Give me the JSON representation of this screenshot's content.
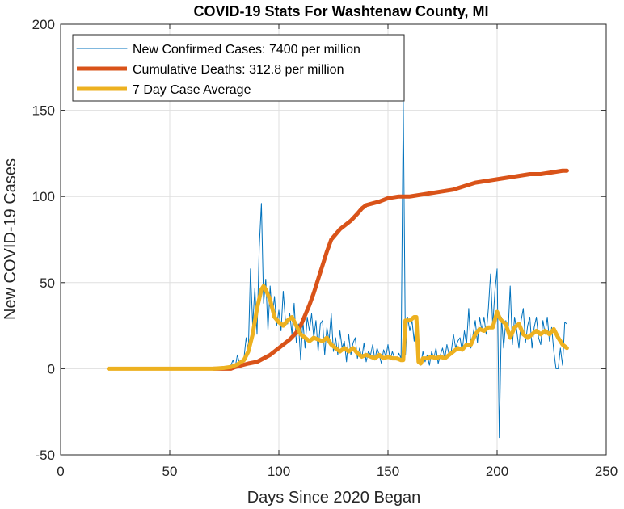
{
  "chart_data": {
    "type": "line",
    "title": "COVID-19 Stats For Washtenaw County, MI",
    "xlabel": "Days Since 2020 Began",
    "ylabel": "New COVID-19 Cases",
    "xlim": [
      0,
      250
    ],
    "ylim": [
      -50,
      200
    ],
    "xticks": [
      0,
      50,
      100,
      150,
      200,
      250
    ],
    "yticks": [
      -50,
      0,
      50,
      100,
      150,
      200
    ],
    "xtick_labels": [
      "0",
      "50",
      "100",
      "150",
      "200",
      "250"
    ],
    "ytick_labels": [
      "-50",
      "0",
      "50",
      "100",
      "150",
      "200"
    ],
    "grid": true,
    "legend_position": "top-left",
    "series": [
      {
        "name": "New Confirmed Cases: 7400 per million",
        "color": "#0072BD",
        "style": "thin",
        "points": [
          [
            22,
            0
          ],
          [
            40,
            0
          ],
          [
            60,
            0
          ],
          [
            70,
            0
          ],
          [
            72,
            0
          ],
          [
            74,
            1
          ],
          [
            76,
            0
          ],
          [
            78,
            2
          ],
          [
            79,
            5
          ],
          [
            80,
            1
          ],
          [
            81,
            8
          ],
          [
            82,
            3
          ],
          [
            83,
            1
          ],
          [
            84,
            6
          ],
          [
            85,
            18
          ],
          [
            86,
            10
          ],
          [
            87,
            58
          ],
          [
            88,
            25
          ],
          [
            89,
            47
          ],
          [
            90,
            20
          ],
          [
            91,
            70
          ],
          [
            92,
            96
          ],
          [
            93,
            38
          ],
          [
            94,
            52
          ],
          [
            95,
            22
          ],
          [
            96,
            48
          ],
          [
            97,
            30
          ],
          [
            98,
            42
          ],
          [
            99,
            25
          ],
          [
            100,
            34
          ],
          [
            101,
            22
          ],
          [
            102,
            45
          ],
          [
            103,
            28
          ],
          [
            104,
            26
          ],
          [
            105,
            32
          ],
          [
            106,
            20
          ],
          [
            107,
            38
          ],
          [
            108,
            15
          ],
          [
            109,
            26
          ],
          [
            110,
            5
          ],
          [
            111,
            28
          ],
          [
            112,
            12
          ],
          [
            113,
            30
          ],
          [
            114,
            22
          ],
          [
            115,
            32
          ],
          [
            116,
            18
          ],
          [
            117,
            28
          ],
          [
            118,
            10
          ],
          [
            119,
            26
          ],
          [
            120,
            28
          ],
          [
            121,
            8
          ],
          [
            122,
            24
          ],
          [
            123,
            16
          ],
          [
            124,
            32
          ],
          [
            125,
            10
          ],
          [
            126,
            18
          ],
          [
            127,
            8
          ],
          [
            128,
            22
          ],
          [
            129,
            12
          ],
          [
            130,
            16
          ],
          [
            131,
            4
          ],
          [
            132,
            20
          ],
          [
            133,
            8
          ],
          [
            134,
            15
          ],
          [
            135,
            18
          ],
          [
            136,
            6
          ],
          [
            137,
            12
          ],
          [
            138,
            6
          ],
          [
            139,
            15
          ],
          [
            140,
            4
          ],
          [
            141,
            10
          ],
          [
            142,
            8
          ],
          [
            143,
            14
          ],
          [
            144,
            5
          ],
          [
            145,
            12
          ],
          [
            146,
            8
          ],
          [
            147,
            3
          ],
          [
            148,
            11
          ],
          [
            149,
            7
          ],
          [
            150,
            14
          ],
          [
            151,
            5
          ],
          [
            152,
            10
          ],
          [
            153,
            6
          ],
          [
            154,
            5
          ],
          [
            155,
            9
          ],
          [
            156,
            6
          ],
          [
            157,
            155
          ],
          [
            158,
            8
          ],
          [
            159,
            30
          ],
          [
            160,
            22
          ],
          [
            161,
            28
          ],
          [
            162,
            16
          ],
          [
            163,
            30
          ],
          [
            164,
            5
          ],
          [
            165,
            2
          ],
          [
            166,
            10
          ],
          [
            167,
            4
          ],
          [
            168,
            8
          ],
          [
            169,
            2
          ],
          [
            170,
            10
          ],
          [
            171,
            6
          ],
          [
            172,
            12
          ],
          [
            173,
            3
          ],
          [
            174,
            8
          ],
          [
            175,
            12
          ],
          [
            176,
            6
          ],
          [
            177,
            14
          ],
          [
            178,
            8
          ],
          [
            179,
            10
          ],
          [
            180,
            20
          ],
          [
            181,
            12
          ],
          [
            182,
            16
          ],
          [
            183,
            18
          ],
          [
            184,
            10
          ],
          [
            185,
            22
          ],
          [
            186,
            14
          ],
          [
            187,
            35
          ],
          [
            188,
            12
          ],
          [
            189,
            20
          ],
          [
            190,
            28
          ],
          [
            191,
            15
          ],
          [
            192,
            30
          ],
          [
            193,
            22
          ],
          [
            194,
            30
          ],
          [
            195,
            20
          ],
          [
            196,
            35
          ],
          [
            197,
            55
          ],
          [
            198,
            25
          ],
          [
            199,
            45
          ],
          [
            200,
            58
          ],
          [
            201,
            -40
          ],
          [
            202,
            30
          ],
          [
            203,
            12
          ],
          [
            204,
            28
          ],
          [
            205,
            20
          ],
          [
            206,
            48
          ],
          [
            207,
            14
          ],
          [
            208,
            30
          ],
          [
            209,
            22
          ],
          [
            210,
            12
          ],
          [
            211,
            28
          ],
          [
            212,
            35
          ],
          [
            213,
            15
          ],
          [
            214,
            25
          ],
          [
            215,
            30
          ],
          [
            216,
            12
          ],
          [
            217,
            24
          ],
          [
            218,
            30
          ],
          [
            219,
            18
          ],
          [
            220,
            14
          ],
          [
            221,
            28
          ],
          [
            222,
            20
          ],
          [
            223,
            30
          ],
          [
            224,
            16
          ],
          [
            225,
            24
          ],
          [
            226,
            10
          ],
          [
            227,
            0
          ],
          [
            228,
            0
          ],
          [
            229,
            12
          ],
          [
            230,
            2
          ],
          [
            231,
            27
          ],
          [
            232,
            26
          ]
        ]
      },
      {
        "name": "Cumulative Deaths: 312.8 per million",
        "color": "#D95319",
        "style": "thick",
        "points": [
          [
            70,
            0
          ],
          [
            78,
            0
          ],
          [
            80,
            1
          ],
          [
            83,
            2
          ],
          [
            86,
            3
          ],
          [
            90,
            4
          ],
          [
            93,
            6
          ],
          [
            96,
            8
          ],
          [
            99,
            11
          ],
          [
            102,
            14
          ],
          [
            105,
            17
          ],
          [
            108,
            21
          ],
          [
            110,
            25
          ],
          [
            112,
            31
          ],
          [
            114,
            37
          ],
          [
            116,
            44
          ],
          [
            118,
            52
          ],
          [
            120,
            60
          ],
          [
            122,
            68
          ],
          [
            124,
            75
          ],
          [
            126,
            78
          ],
          [
            128,
            81
          ],
          [
            130,
            83
          ],
          [
            133,
            86
          ],
          [
            136,
            90
          ],
          [
            138,
            93
          ],
          [
            140,
            95
          ],
          [
            143,
            96
          ],
          [
            146,
            97
          ],
          [
            148,
            98
          ],
          [
            150,
            99
          ],
          [
            155,
            100
          ],
          [
            160,
            100
          ],
          [
            165,
            101
          ],
          [
            170,
            102
          ],
          [
            175,
            103
          ],
          [
            180,
            104
          ],
          [
            185,
            106
          ],
          [
            190,
            108
          ],
          [
            195,
            109
          ],
          [
            200,
            110
          ],
          [
            205,
            111
          ],
          [
            210,
            112
          ],
          [
            215,
            113
          ],
          [
            220,
            113
          ],
          [
            225,
            114
          ],
          [
            230,
            115
          ],
          [
            232,
            115
          ]
        ]
      },
      {
        "name": "7 Day Case Average",
        "color": "#EDB120",
        "style": "thick",
        "points": [
          [
            22,
            0
          ],
          [
            40,
            0
          ],
          [
            60,
            0
          ],
          [
            70,
            0
          ],
          [
            75,
            0.5
          ],
          [
            78,
            1
          ],
          [
            81,
            2.5
          ],
          [
            84,
            5
          ],
          [
            86,
            10
          ],
          [
            88,
            20
          ],
          [
            90,
            35
          ],
          [
            92,
            46
          ],
          [
            93,
            48
          ],
          [
            94,
            46
          ],
          [
            96,
            40
          ],
          [
            98,
            30
          ],
          [
            100,
            27
          ],
          [
            102,
            25
          ],
          [
            104,
            28
          ],
          [
            106,
            30
          ],
          [
            108,
            25
          ],
          [
            110,
            20
          ],
          [
            112,
            18
          ],
          [
            114,
            16
          ],
          [
            116,
            18
          ],
          [
            118,
            17
          ],
          [
            120,
            16
          ],
          [
            122,
            18
          ],
          [
            124,
            14
          ],
          [
            126,
            12
          ],
          [
            128,
            10
          ],
          [
            130,
            12
          ],
          [
            132,
            10
          ],
          [
            134,
            12
          ],
          [
            136,
            9
          ],
          [
            138,
            7
          ],
          [
            140,
            8
          ],
          [
            142,
            7
          ],
          [
            144,
            6
          ],
          [
            146,
            8
          ],
          [
            148,
            6
          ],
          [
            150,
            7
          ],
          [
            152,
            6
          ],
          [
            154,
            6
          ],
          [
            156,
            5
          ],
          [
            157,
            5
          ],
          [
            158,
            28
          ],
          [
            160,
            28
          ],
          [
            162,
            30
          ],
          [
            163,
            30
          ],
          [
            164,
            4
          ],
          [
            165,
            3
          ],
          [
            166,
            6
          ],
          [
            168,
            6
          ],
          [
            170,
            7
          ],
          [
            172,
            6
          ],
          [
            174,
            7
          ],
          [
            176,
            6
          ],
          [
            178,
            8
          ],
          [
            180,
            10
          ],
          [
            182,
            12
          ],
          [
            184,
            11
          ],
          [
            186,
            14
          ],
          [
            188,
            14
          ],
          [
            190,
            20
          ],
          [
            192,
            23
          ],
          [
            194,
            22
          ],
          [
            196,
            24
          ],
          [
            198,
            24
          ],
          [
            200,
            33
          ],
          [
            201,
            30
          ],
          [
            202,
            28
          ],
          [
            204,
            26
          ],
          [
            206,
            18
          ],
          [
            208,
            24
          ],
          [
            210,
            26
          ],
          [
            212,
            20
          ],
          [
            214,
            18
          ],
          [
            216,
            20
          ],
          [
            218,
            22
          ],
          [
            220,
            20
          ],
          [
            222,
            22
          ],
          [
            224,
            20
          ],
          [
            226,
            23
          ],
          [
            228,
            18
          ],
          [
            230,
            14
          ],
          [
            232,
            12
          ]
        ]
      }
    ]
  }
}
